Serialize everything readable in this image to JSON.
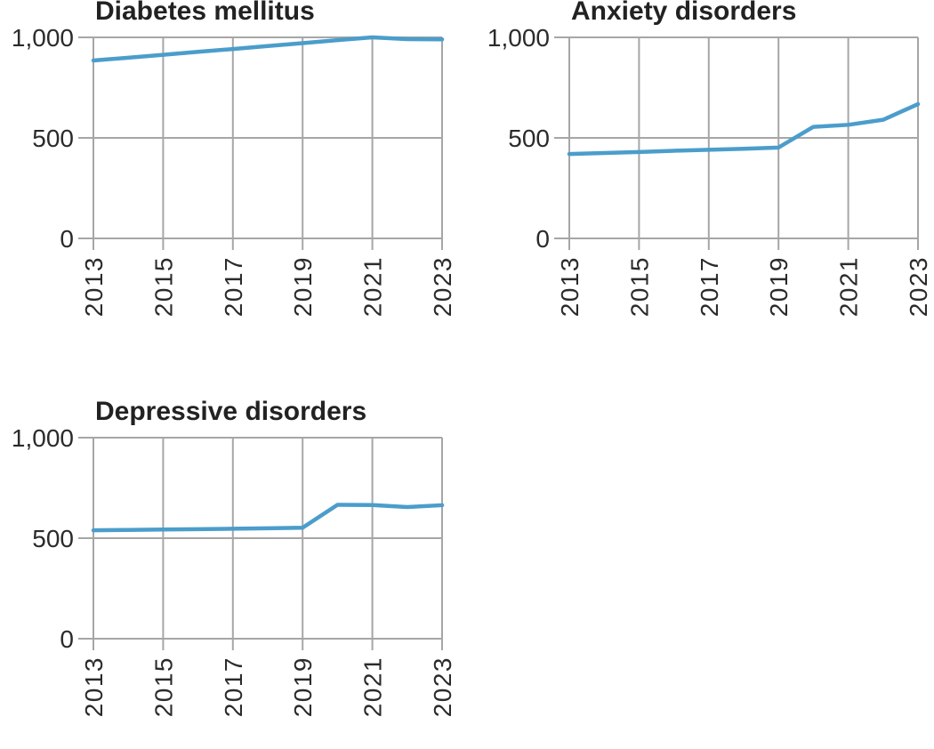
{
  "styles": {
    "background": "#ffffff",
    "line_color": "#4b9dcb",
    "grid_color": "#a6a6a6",
    "tick_color": "#a6a6a6",
    "label_color": "#2b2b2b",
    "title_color": "#222222"
  },
  "chart_data": [
    {
      "type": "line",
      "title": "Diabetes mellitus",
      "x": [
        2013,
        2014,
        2015,
        2016,
        2017,
        2018,
        2019,
        2020,
        2021,
        2022,
        2023
      ],
      "values": [
        885,
        899,
        913,
        928,
        942,
        957,
        971,
        986,
        1000,
        991,
        990
      ],
      "xlim": [
        2013,
        2023
      ],
      "ylim": [
        0,
        1000
      ],
      "yticks": [
        0,
        500,
        1000
      ],
      "ytick_labels": [
        "0",
        "500",
        "1,000"
      ],
      "xticks": [
        2013,
        2015,
        2017,
        2019,
        2021,
        2023
      ],
      "xlabel": "",
      "ylabel": "",
      "grid": "on",
      "legend": "none"
    },
    {
      "type": "line",
      "title": "Anxiety disorders",
      "x": [
        2013,
        2014,
        2015,
        2016,
        2017,
        2018,
        2019,
        2020,
        2021,
        2022,
        2023
      ],
      "values": [
        420,
        425,
        430,
        436,
        441,
        446,
        452,
        555,
        565,
        590,
        668
      ],
      "xlim": [
        2013,
        2023
      ],
      "ylim": [
        0,
        1000
      ],
      "yticks": [
        0,
        500,
        1000
      ],
      "ytick_labels": [
        "0",
        "500",
        "1,000"
      ],
      "xticks": [
        2013,
        2015,
        2017,
        2019,
        2021,
        2023
      ],
      "xlabel": "",
      "ylabel": "",
      "grid": "on",
      "legend": "none"
    },
    {
      "type": "line",
      "title": "Depressive disorders",
      "x": [
        2013,
        2014,
        2015,
        2016,
        2017,
        2018,
        2019,
        2020,
        2021,
        2022,
        2023
      ],
      "values": [
        539,
        541,
        543,
        545,
        547,
        549,
        552,
        666,
        665,
        655,
        664
      ],
      "xlim": [
        2013,
        2023
      ],
      "ylim": [
        0,
        1000
      ],
      "yticks": [
        0,
        500,
        1000
      ],
      "ytick_labels": [
        "0",
        "500",
        "1,000"
      ],
      "xticks": [
        2013,
        2015,
        2017,
        2019,
        2021,
        2023
      ],
      "xlabel": "",
      "ylabel": "",
      "grid": "on",
      "legend": "none"
    }
  ]
}
